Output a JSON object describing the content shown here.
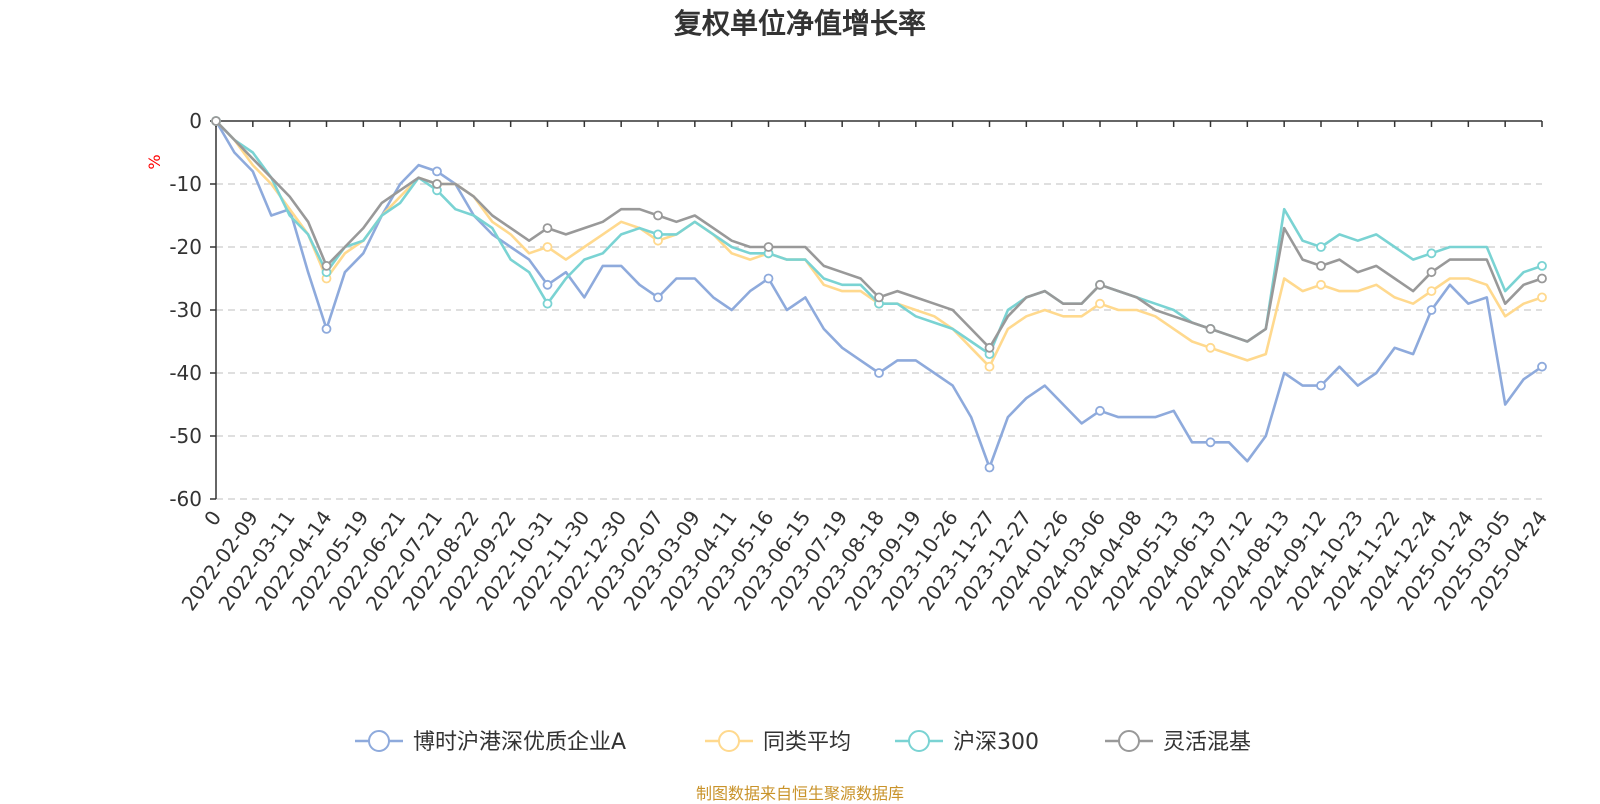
{
  "chart_data": {
    "type": "line",
    "title": "复权单位净值增长率",
    "ylabel": "%",
    "ylim": [
      -60,
      0
    ],
    "yticks": [
      0,
      -10,
      -20,
      -30,
      -40,
      -50,
      -60
    ],
    "xticks": [
      "0",
      "2022-02-09",
      "2022-03-11",
      "2022-04-14",
      "2022-05-19",
      "2022-06-21",
      "2022-07-21",
      "2022-08-22",
      "2022-09-22",
      "2022-10-31",
      "2022-11-30",
      "2022-12-30",
      "2023-02-07",
      "2023-03-09",
      "2023-04-11",
      "2023-05-16",
      "2023-06-15",
      "2023-07-19",
      "2023-08-18",
      "2023-09-19",
      "2023-10-26",
      "2023-11-27",
      "2023-12-27",
      "2024-01-26",
      "2024-03-06",
      "2024-04-08",
      "2024-05-13",
      "2024-06-13",
      "2024-07-12",
      "2024-08-13",
      "2024-09-12",
      "2024-10-23",
      "2024-11-22",
      "2024-12-24",
      "2025-01-24",
      "2025-03-05",
      "2025-04-24"
    ],
    "grid": "horizontal dashed",
    "legend_position": "bottom",
    "series": [
      {
        "name": "博时沪港深优质企业A",
        "color": "#8eaadc",
        "values": [
          0,
          -5,
          -8,
          -15,
          -14,
          -24,
          -33,
          -24,
          -21,
          -15,
          -10,
          -7,
          -8,
          -10,
          -15,
          -18,
          -20,
          -22,
          -26,
          -24,
          -28,
          -23,
          -23,
          -26,
          -28,
          -25,
          -25,
          -28,
          -30,
          -27,
          -25,
          -30,
          -28,
          -33,
          -36,
          -38,
          -40,
          -38,
          -38,
          -40,
          -42,
          -47,
          -55,
          -47,
          -44,
          -42,
          -45,
          -48,
          -46,
          -47,
          -47,
          -47,
          -46,
          -51,
          -51,
          -51,
          -54,
          -50,
          -40,
          -42,
          -42,
          -39,
          -42,
          -40,
          -36,
          -37,
          -30,
          -26,
          -29,
          -28,
          -45,
          -41,
          -39
        ]
      },
      {
        "name": "同类平均",
        "color": "#ffd98e",
        "values": [
          0,
          -3,
          -7,
          -10,
          -14,
          -18,
          -25,
          -21,
          -19,
          -15,
          -12,
          -9,
          -10,
          -10,
          -12,
          -16,
          -18,
          -21,
          -20,
          -22,
          -20,
          -18,
          -16,
          -17,
          -19,
          -18,
          -16,
          -18,
          -21,
          -22,
          -21,
          -22,
          -22,
          -26,
          -27,
          -27,
          -29,
          -29,
          -30,
          -31,
          -33,
          -36,
          -39,
          -33,
          -31,
          -30,
          -31,
          -31,
          -29,
          -30,
          -30,
          -31,
          -33,
          -35,
          -36,
          -37,
          -38,
          -37,
          -25,
          -27,
          -26,
          -27,
          -27,
          -26,
          -28,
          -29,
          -27,
          -25,
          -25,
          -26,
          -31,
          -29,
          -28
        ]
      },
      {
        "name": "沪深300",
        "color": "#7ad3d3",
        "values": [
          0,
          -3,
          -5,
          -9,
          -15,
          -18,
          -24,
          -20,
          -19,
          -15,
          -13,
          -9,
          -11,
          -14,
          -15,
          -17,
          -22,
          -24,
          -29,
          -25,
          -22,
          -21,
          -18,
          -17,
          -18,
          -18,
          -16,
          -18,
          -20,
          -21,
          -21,
          -22,
          -22,
          -25,
          -26,
          -26,
          -29,
          -29,
          -31,
          -32,
          -33,
          -35,
          -37,
          -30,
          -28,
          -27,
          -29,
          -29,
          -26,
          -27,
          -28,
          -29,
          -30,
          -32,
          -33,
          -34,
          -35,
          -33,
          -14,
          -19,
          -20,
          -18,
          -19,
          -18,
          -20,
          -22,
          -21,
          -20,
          -20,
          -20,
          -27,
          -24,
          -23
        ]
      },
      {
        "name": "灵活混基",
        "color": "#999999",
        "values": [
          0,
          -3,
          -6,
          -9,
          -12,
          -16,
          -23,
          -20,
          -17,
          -13,
          -11,
          -9,
          -10,
          -10,
          -12,
          -15,
          -17,
          -19,
          -17,
          -18,
          -17,
          -16,
          -14,
          -14,
          -15,
          -16,
          -15,
          -17,
          -19,
          -20,
          -20,
          -20,
          -20,
          -23,
          -24,
          -25,
          -28,
          -27,
          -28,
          -29,
          -30,
          -33,
          -36,
          -31,
          -28,
          -27,
          -29,
          -29,
          -26,
          -27,
          -28,
          -30,
          -31,
          -32,
          -33,
          -34,
          -35,
          -33,
          -17,
          -22,
          -23,
          -22,
          -24,
          -23,
          -25,
          -27,
          -24,
          -22,
          -22,
          -22,
          -29,
          -26,
          -25
        ]
      }
    ]
  },
  "source_note": "制图数据来自恒生聚源数据库"
}
